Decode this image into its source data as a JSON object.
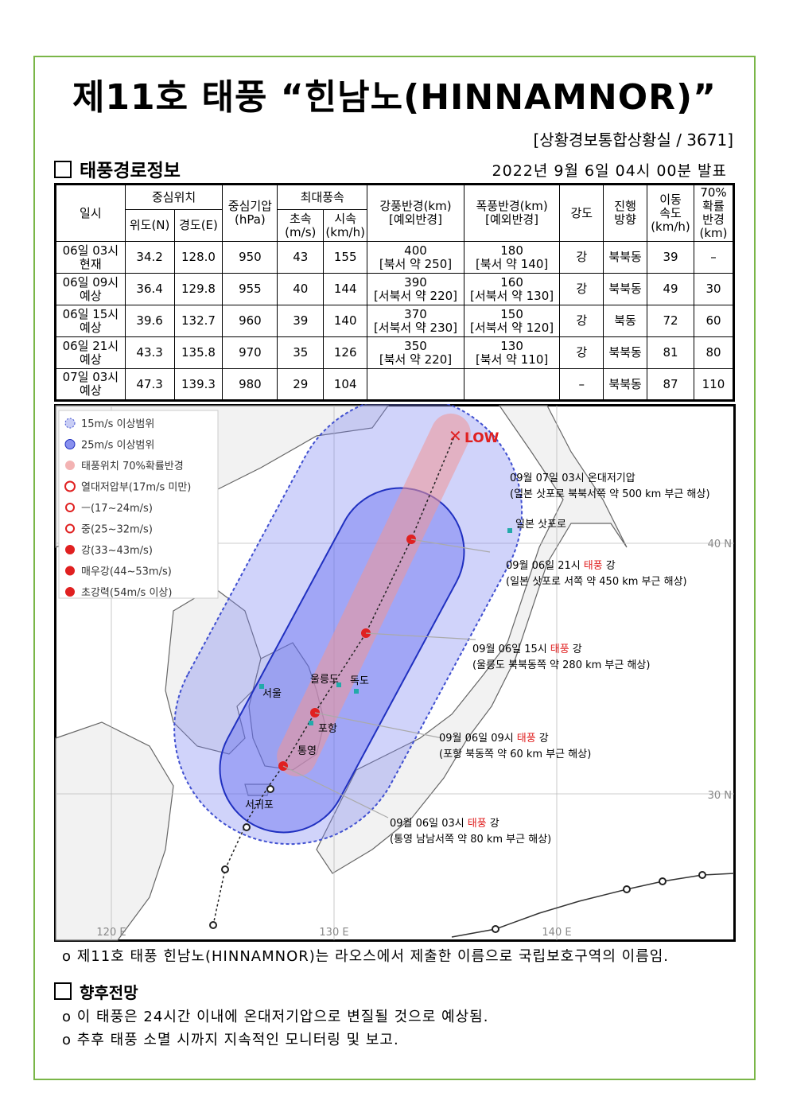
{
  "header": {
    "title": "제11호 태풍 “힌남노(HINNAMNOR)”",
    "office": "[상황경보통합상황실 / 3671]"
  },
  "section1": {
    "heading": "태풍경로정보",
    "issued": "2022년 9월 6일 04시 00분 발표"
  },
  "table": {
    "headers": {
      "datetime": "일시",
      "center": "중심위치",
      "lat": "위도(N)",
      "lon": "경도(E)",
      "pressure": [
        "중심기압",
        "(hPa)"
      ],
      "max_wind": "최대풍속",
      "ms": [
        "초속",
        "(m/s)"
      ],
      "kmh": [
        "시속",
        "(km/h)"
      ],
      "gale": [
        "강풍반경(km)",
        "[예외반경]"
      ],
      "storm": [
        "폭풍반경(km)",
        "[예외반경]"
      ],
      "intensity": "강도",
      "direction": [
        "진행",
        "방향"
      ],
      "speed": [
        "이동",
        "속도",
        "(km/h)"
      ],
      "prob": [
        "70%",
        "확률",
        "반경",
        "(km)"
      ]
    },
    "rows": [
      {
        "time": [
          "06일 03시",
          "현재"
        ],
        "lat": "34.2",
        "lon": "128.0",
        "pressure": "950",
        "ms": "43",
        "kmh": "155",
        "gale": [
          "400",
          "[북서 약 250]"
        ],
        "storm": [
          "180",
          "[북서 약 140]"
        ],
        "intensity": "강",
        "direction": "북북동",
        "speed": "39",
        "prob": "–"
      },
      {
        "time": [
          "06일 09시",
          "예상"
        ],
        "lat": "36.4",
        "lon": "129.8",
        "pressure": "955",
        "ms": "40",
        "kmh": "144",
        "gale": [
          "390",
          "[서북서 약 220]"
        ],
        "storm": [
          "160",
          "[서북서 약 130]"
        ],
        "intensity": "강",
        "direction": "북북동",
        "speed": "49",
        "prob": "30"
      },
      {
        "time": [
          "06일 15시",
          "예상"
        ],
        "lat": "39.6",
        "lon": "132.7",
        "pressure": "960",
        "ms": "39",
        "kmh": "140",
        "gale": [
          "370",
          "[서북서 약 230]"
        ],
        "storm": [
          "150",
          "[서북서 약 120]"
        ],
        "intensity": "강",
        "direction": "북동",
        "speed": "72",
        "prob": "60"
      },
      {
        "time": [
          "06일 21시",
          "예상"
        ],
        "lat": "43.3",
        "lon": "135.8",
        "pressure": "970",
        "ms": "35",
        "kmh": "126",
        "gale": [
          "350",
          "[북서 약 220]"
        ],
        "storm": [
          "130",
          "[북서 약 110]"
        ],
        "intensity": "강",
        "direction": "북북동",
        "speed": "81",
        "prob": "80"
      },
      {
        "time": [
          "07일 03시",
          "예상"
        ],
        "lat": "47.3",
        "lon": "139.3",
        "pressure": "980",
        "ms": "29",
        "kmh": "104",
        "intensity": "–",
        "direction": "북북동",
        "speed": "87",
        "prob": "110"
      }
    ]
  },
  "map": {
    "legend": [
      "15m/s 이상범위",
      "25m/s 이상범위",
      "태풍위치 70%확률반경",
      "열대저압부(17m/s 미만)",
      "ㅡ(17~24m/s)",
      "중(25~32m/s)",
      "강(33~43m/s)",
      "매우강(44~53m/s)",
      "초강력(54m/s 이상)"
    ],
    "lat_labels": [
      "40 N",
      "30 N"
    ],
    "lon_labels": [
      "120 E",
      "130 E",
      "140 E"
    ],
    "low": "LOW",
    "places": [
      "서울",
      "울릉도",
      "독도",
      "포항",
      "통영",
      "서귀포",
      "일본 삿포로"
    ],
    "annotations": [
      {
        "time": "09월 07일 03시 온대저기압",
        "detail": "(일본 삿포로 북북서쪽 약 500 km 부근 해상)"
      },
      {
        "time": "09월 06일 21시",
        "kind": "태풍",
        "strength": "강",
        "detail": "(일본 삿포로 서쪽 약 450 km 부근 해상)"
      },
      {
        "time": "09월 06일 15시",
        "kind": "태풍",
        "strength": "강",
        "detail": "(울릉도 북북동쪽 약 280 km 부근 해상)"
      },
      {
        "time": "09월 06일 09시",
        "kind": "태풍",
        "strength": "강",
        "detail": "(포항 북동쪽 약 60 km 부근 해상)"
      },
      {
        "time": "09월 06일 03시",
        "kind": "태풍",
        "strength": "강",
        "detail": "(통영 남남서쪽 약 80 km 부근 해상)"
      }
    ]
  },
  "note": "o 제11호 태풍 힌남노(HINNAMNOR)는 라오스에서 제출한 이름으로 국립보호구역의 이름임.",
  "section2": {
    "heading": "향후전망",
    "items": [
      "o 이 태풍은 24시간 이내에 온대저기압으로 변질될 것으로 예상됨.",
      "o 추후 태풍 소멸 시까지 지속적인 모니터링 및 보고."
    ]
  }
}
